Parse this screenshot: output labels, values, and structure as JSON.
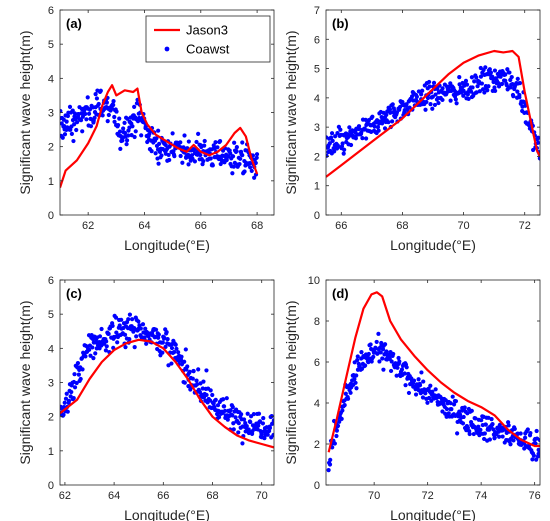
{
  "figure": {
    "series_names": [
      "Jason3",
      "Coawst"
    ],
    "series_colors": [
      "#ff0000",
      "#0000ff"
    ],
    "xlabel": "Longitude(°E)",
    "ylabel": "Significant wave height(m)"
  },
  "chart_data": [
    {
      "type": "line",
      "panel_label": "(a)",
      "legend": [
        "Jason3",
        "Coawst"
      ],
      "legend_position": "top-right",
      "xlabel": "Longitude(°E)",
      "ylabel": "Significant wave height(m)",
      "xlim": [
        61,
        68.6
      ],
      "ylim": [
        0,
        6
      ],
      "xticks": [
        62,
        64,
        66,
        68
      ],
      "yticks": [
        0,
        1,
        2,
        3,
        4,
        5,
        6
      ],
      "series": [
        {
          "name": "Jason3",
          "type": "line",
          "points": [
            [
              61.0,
              0.8
            ],
            [
              61.2,
              1.3
            ],
            [
              61.6,
              1.6
            ],
            [
              62.0,
              2.1
            ],
            [
              62.3,
              2.6
            ],
            [
              62.5,
              3.2
            ],
            [
              62.7,
              3.6
            ],
            [
              62.85,
              3.8
            ],
            [
              63.0,
              3.5
            ],
            [
              63.3,
              3.65
            ],
            [
              63.6,
              3.6
            ],
            [
              63.75,
              3.7
            ],
            [
              63.9,
              3.0
            ],
            [
              64.1,
              2.65
            ],
            [
              64.4,
              2.35
            ],
            [
              64.8,
              2.15
            ],
            [
              65.2,
              1.95
            ],
            [
              65.5,
              1.85
            ],
            [
              65.75,
              2.05
            ],
            [
              66.0,
              1.85
            ],
            [
              66.3,
              1.75
            ],
            [
              66.6,
              1.85
            ],
            [
              66.9,
              2.05
            ],
            [
              67.2,
              2.4
            ],
            [
              67.4,
              2.55
            ],
            [
              67.6,
              2.3
            ],
            [
              67.8,
              1.65
            ],
            [
              68.0,
              1.2
            ]
          ]
        },
        {
          "name": "Coawst",
          "type": "scatter",
          "trend": [
            [
              61.0,
              2.6
            ],
            [
              61.5,
              2.75
            ],
            [
              62.0,
              3.0
            ],
            [
              62.5,
              3.25
            ],
            [
              62.9,
              3.1
            ],
            [
              63.1,
              2.3
            ],
            [
              63.4,
              2.6
            ],
            [
              63.8,
              2.95
            ],
            [
              64.1,
              2.4
            ],
            [
              64.5,
              2.0
            ],
            [
              65.0,
              1.95
            ],
            [
              65.5,
              1.85
            ],
            [
              66.0,
              1.8
            ],
            [
              66.5,
              1.8
            ],
            [
              67.0,
              1.75
            ],
            [
              67.5,
              1.65
            ],
            [
              68.0,
              1.45
            ]
          ],
          "spread": 0.22
        }
      ]
    },
    {
      "type": "line",
      "panel_label": "(b)",
      "xlabel": "Longitude(°E)",
      "ylabel": "Significant wave height(m)",
      "xlim": [
        65.5,
        72.5
      ],
      "ylim": [
        0,
        7
      ],
      "xticks": [
        66,
        68,
        70,
        72
      ],
      "yticks": [
        0,
        1,
        2,
        3,
        4,
        5,
        6,
        7
      ],
      "series": [
        {
          "name": "Jason3",
          "type": "line",
          "points": [
            [
              65.5,
              1.3
            ],
            [
              66.0,
              1.7
            ],
            [
              66.5,
              2.1
            ],
            [
              67.0,
              2.5
            ],
            [
              67.5,
              2.9
            ],
            [
              68.0,
              3.3
            ],
            [
              68.5,
              3.8
            ],
            [
              69.0,
              4.3
            ],
            [
              69.5,
              4.8
            ],
            [
              70.0,
              5.2
            ],
            [
              70.5,
              5.45
            ],
            [
              71.0,
              5.6
            ],
            [
              71.3,
              5.55
            ],
            [
              71.6,
              5.6
            ],
            [
              71.8,
              5.4
            ],
            [
              72.0,
              4.2
            ],
            [
              72.2,
              3.2
            ],
            [
              72.4,
              2.2
            ],
            [
              72.5,
              2.0
            ]
          ]
        },
        {
          "name": "Coawst",
          "type": "scatter",
          "trend": [
            [
              65.5,
              2.3
            ],
            [
              66.0,
              2.5
            ],
            [
              66.5,
              2.75
            ],
            [
              67.0,
              3.0
            ],
            [
              67.5,
              3.35
            ],
            [
              68.0,
              3.65
            ],
            [
              68.5,
              3.95
            ],
            [
              69.0,
              4.15
            ],
            [
              69.5,
              4.2
            ],
            [
              70.0,
              4.3
            ],
            [
              70.5,
              4.5
            ],
            [
              71.0,
              4.7
            ],
            [
              71.5,
              4.65
            ],
            [
              71.8,
              4.3
            ],
            [
              72.0,
              3.6
            ],
            [
              72.3,
              2.6
            ],
            [
              72.5,
              2.1
            ]
          ],
          "spread": 0.22
        }
      ]
    },
    {
      "type": "line",
      "panel_label": "(c)",
      "xlabel": "Longitude(°E)",
      "ylabel": "Significant wave height(m)",
      "xlim": [
        61.8,
        70.5
      ],
      "ylim": [
        0,
        6
      ],
      "xticks": [
        62,
        64,
        66,
        68,
        70
      ],
      "yticks": [
        0,
        1,
        2,
        3,
        4,
        5,
        6
      ],
      "series": [
        {
          "name": "Jason3",
          "type": "line",
          "points": [
            [
              61.8,
              2.1
            ],
            [
              62.5,
              2.5
            ],
            [
              63.0,
              3.1
            ],
            [
              63.5,
              3.6
            ],
            [
              64.0,
              3.95
            ],
            [
              64.5,
              4.15
            ],
            [
              65.0,
              4.25
            ],
            [
              65.5,
              4.2
            ],
            [
              66.0,
              4.0
            ],
            [
              66.5,
              3.6
            ],
            [
              67.0,
              3.1
            ],
            [
              67.5,
              2.5
            ],
            [
              68.0,
              2.0
            ],
            [
              68.5,
              1.7
            ],
            [
              69.0,
              1.45
            ],
            [
              69.5,
              1.3
            ],
            [
              70.0,
              1.2
            ],
            [
              70.5,
              1.1
            ]
          ]
        },
        {
          "name": "Coawst",
          "type": "scatter",
          "trend": [
            [
              61.8,
              2.1
            ],
            [
              62.2,
              2.6
            ],
            [
              62.6,
              3.4
            ],
            [
              63.0,
              4.1
            ],
            [
              63.5,
              4.2
            ],
            [
              64.0,
              4.45
            ],
            [
              64.5,
              4.6
            ],
            [
              65.0,
              4.6
            ],
            [
              65.5,
              4.4
            ],
            [
              66.0,
              4.2
            ],
            [
              66.5,
              3.8
            ],
            [
              67.0,
              3.3
            ],
            [
              67.5,
              2.8
            ],
            [
              68.0,
              2.4
            ],
            [
              68.5,
              2.1
            ],
            [
              69.0,
              1.95
            ],
            [
              69.5,
              1.8
            ],
            [
              70.0,
              1.75
            ],
            [
              70.5,
              1.8
            ]
          ],
          "spread": 0.22
        }
      ]
    },
    {
      "type": "line",
      "panel_label": "(d)",
      "xlabel": "Longitude(°E)",
      "ylabel": "Significant wave height(m)",
      "xlim": [
        68.2,
        76.2
      ],
      "ylim": [
        0,
        10
      ],
      "xticks": [
        70,
        72,
        74,
        76
      ],
      "yticks": [
        0,
        2,
        4,
        6,
        8,
        10
      ],
      "series": [
        {
          "name": "Jason3",
          "type": "line",
          "points": [
            [
              68.3,
              1.6
            ],
            [
              68.6,
              3.2
            ],
            [
              69.0,
              5.5
            ],
            [
              69.3,
              7.2
            ],
            [
              69.6,
              8.6
            ],
            [
              69.9,
              9.3
            ],
            [
              70.1,
              9.4
            ],
            [
              70.3,
              9.2
            ],
            [
              70.6,
              8.0
            ],
            [
              71.0,
              7.1
            ],
            [
              71.5,
              6.3
            ],
            [
              72.0,
              5.6
            ],
            [
              72.5,
              5.0
            ],
            [
              73.0,
              4.5
            ],
            [
              73.5,
              4.1
            ],
            [
              74.0,
              3.8
            ],
            [
              74.5,
              3.4
            ],
            [
              75.0,
              2.7
            ],
            [
              75.5,
              2.2
            ],
            [
              76.0,
              1.9
            ],
            [
              76.2,
              1.9
            ]
          ]
        },
        {
          "name": "Coawst",
          "type": "scatter",
          "trend": [
            [
              68.3,
              1.2
            ],
            [
              68.6,
              2.8
            ],
            [
              69.0,
              4.5
            ],
            [
              69.3,
              5.5
            ],
            [
              69.6,
              6.1
            ],
            [
              70.0,
              6.5
            ],
            [
              70.4,
              6.4
            ],
            [
              70.8,
              5.8
            ],
            [
              71.2,
              5.3
            ],
            [
              71.6,
              4.9
            ],
            [
              72.0,
              4.5
            ],
            [
              72.5,
              4.0
            ],
            [
              73.0,
              3.6
            ],
            [
              73.5,
              3.2
            ],
            [
              74.0,
              2.9
            ],
            [
              74.5,
              2.7
            ],
            [
              75.0,
              2.5
            ],
            [
              75.5,
              2.2
            ],
            [
              76.0,
              2.0
            ],
            [
              76.2,
              1.9
            ]
          ],
          "spread": 0.3
        }
      ]
    }
  ]
}
